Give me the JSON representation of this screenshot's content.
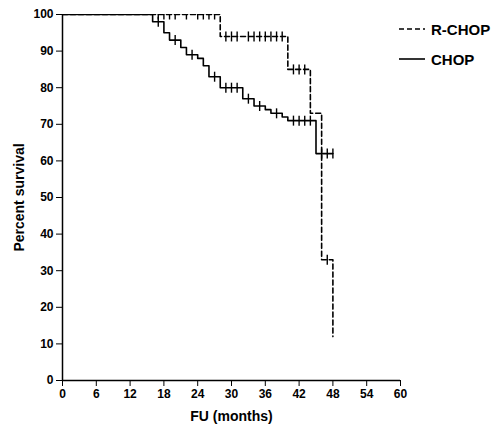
{
  "chart_data": {
    "type": "step",
    "x_label": "FU (months)",
    "y_label": "Percent survival",
    "xlim": [
      0,
      60
    ],
    "xticks": [
      0,
      6,
      12,
      18,
      24,
      30,
      36,
      42,
      48,
      54,
      60
    ],
    "ylim": [
      0,
      100
    ],
    "yticks": [
      0,
      10,
      20,
      30,
      40,
      50,
      60,
      70,
      80,
      90,
      100
    ],
    "legend": "top-right",
    "series": [
      {
        "name": "R-CHOP",
        "color": "#000000",
        "line_style": "dashed",
        "marker": "tick",
        "x": [
          0,
          28,
          40,
          44,
          46,
          48
        ],
        "values": [
          100,
          94,
          85,
          73,
          33,
          12
        ],
        "censored": [
          17,
          18,
          19,
          20,
          22,
          24,
          25,
          26,
          27,
          29,
          30,
          31,
          33,
          34,
          35,
          36,
          37,
          38,
          39,
          41,
          42,
          43,
          47
        ]
      },
      {
        "name": "CHOP",
        "color": "#000000",
        "line_style": "solid",
        "marker": "tick",
        "x": [
          0,
          16,
          18,
          19,
          21,
          22,
          24,
          25,
          26,
          28,
          32,
          34,
          36,
          37,
          39,
          40,
          45,
          48
        ],
        "values": [
          100,
          98,
          95,
          93,
          91,
          89,
          88,
          86,
          83,
          80,
          77,
          75,
          74,
          73,
          72,
          71,
          62,
          62
        ],
        "censored": [
          17,
          20,
          23,
          27,
          29,
          30,
          31,
          33,
          35,
          38,
          41,
          42,
          43,
          44,
          46,
          47,
          48
        ]
      }
    ]
  }
}
